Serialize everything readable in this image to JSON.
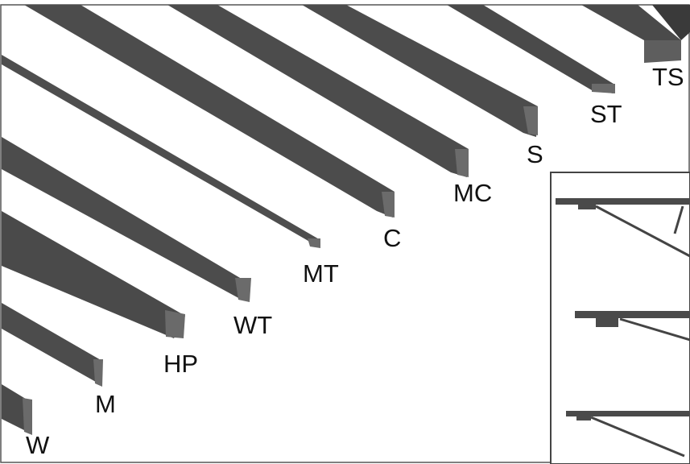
{
  "figure": {
    "title": "",
    "labels": {
      "W": "W",
      "M": "M",
      "HP": "HP",
      "WT": "WT",
      "MT": "MT",
      "C": "C",
      "MC": "MC",
      "S": "S",
      "ST": "ST",
      "TS": "TS"
    }
  },
  "colors": {
    "steel_dark": "#3c3c3c",
    "steel_mid": "#5a5a5a",
    "steel_light": "#7a7a7a",
    "steel_face": "#8a8a8a",
    "border": "#555555",
    "background": "#ffffff"
  }
}
